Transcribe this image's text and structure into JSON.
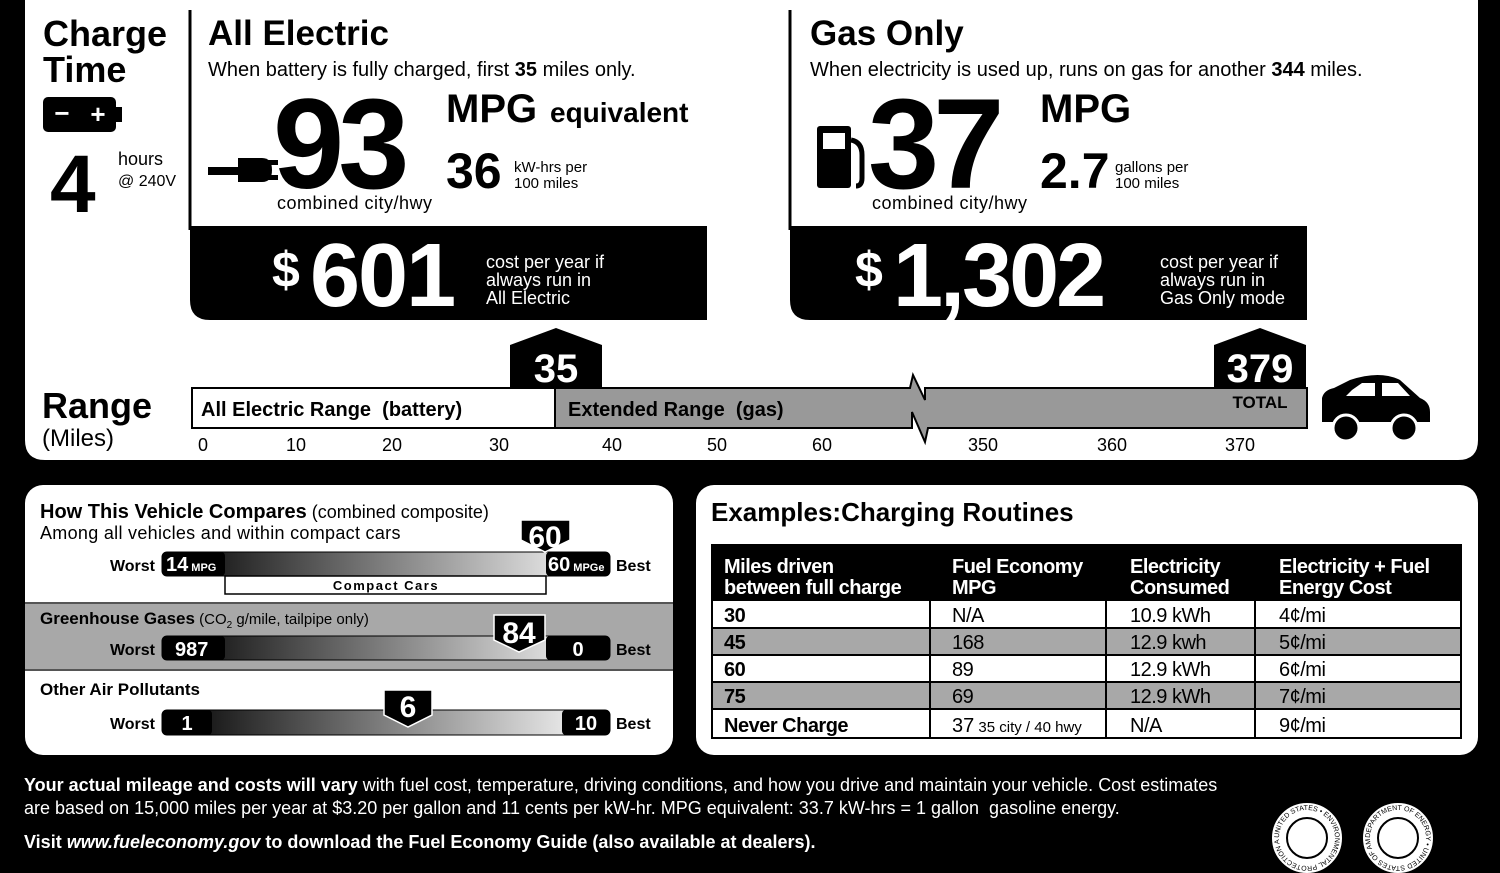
{
  "charge_time": {
    "title_line1": "Charge",
    "title_line2": "Time",
    "battery_minus": "−",
    "battery_plus": "+",
    "hours": "4",
    "hours_unit": "hours",
    "voltage": "@ 240V"
  },
  "all_electric": {
    "title": "All Electric",
    "subtitle_pre": "When battery is fully charged, first ",
    "subtitle_value": "35",
    "subtitle_post": " miles only.",
    "mpge": "93",
    "mpge_unit": "MPG",
    "mpge_suffix": "equivalent",
    "consumption": "36",
    "consumption_unit_line1": "kW-hrs per",
    "consumption_unit_line2": "100 miles",
    "combined": "combined city/hwy",
    "cost_symbol": "$",
    "cost": "601",
    "cost_note": [
      "cost per year if",
      "always run in",
      "All Electric"
    ]
  },
  "gas_only": {
    "title": "Gas Only",
    "subtitle_pre": "When electricity is used up, runs on gas for another ",
    "subtitle_value": "344",
    "subtitle_post": " miles.",
    "mpg": "37",
    "mpg_unit": "MPG",
    "consumption": "2.7",
    "consumption_unit_line1": "gallons per",
    "consumption_unit_line2": "100 miles",
    "combined": "combined city/hwy",
    "cost_symbol": "$",
    "cost": "1,302",
    "cost_note": [
      "cost per year if",
      "always run in",
      "Gas Only mode"
    ]
  },
  "range": {
    "title": "Range",
    "unit": "(Miles)",
    "electric_label": "All Electric Range  (battery)",
    "extended_label": "Extended Range  (gas)",
    "electric_badge": "35",
    "total_badge": "379",
    "total_label": "TOTAL",
    "ticks": [
      "0",
      "10",
      "20",
      "30",
      "40",
      "50",
      "60",
      "350",
      "360",
      "370"
    ]
  },
  "compare": {
    "title": "How This Vehicle Compares",
    "title_note": " (combined composite)",
    "subtitle": "Among all vehicles and within compact cars",
    "fuel": {
      "worst_label": "Worst",
      "worst": "14",
      "worst_unit": " MPG",
      "best": "60",
      "best_unit": " MPGe",
      "best_label": "Best",
      "group": "Compact Cars",
      "marker": "60"
    },
    "greenhouse": {
      "title": "Greenhouse Gases",
      "note_pre": " (CO",
      "note_sub": "2",
      "note_post": " g/mile, tailpipe only)",
      "worst_label": "Worst",
      "worst": "987",
      "best": "0",
      "best_label": "Best",
      "marker": "84"
    },
    "pollutants": {
      "title": "Other Air Pollutants",
      "worst_label": "Worst",
      "worst": "1",
      "best": "10",
      "best_label": "Best",
      "marker": "6"
    }
  },
  "table": {
    "title": "Examples:Charging Routines",
    "headers": [
      [
        "Miles driven",
        "between full charge"
      ],
      [
        "Fuel Economy",
        "MPG"
      ],
      [
        "Electricity",
        "Consumed"
      ],
      [
        "Electricity + Fuel",
        "Energy Cost"
      ]
    ],
    "rows": [
      [
        "30",
        "N/A",
        "10.9 kWh",
        "4¢/mi"
      ],
      [
        "45",
        "168",
        "12.9 kwh",
        "5¢/mi"
      ],
      [
        "60",
        "89",
        "12.9 kWh",
        "6¢/mi"
      ],
      [
        "75",
        "69",
        "12.9 kWh",
        "7¢/mi"
      ],
      [
        "Never Charge",
        "37",
        "N/A",
        "9¢/mi"
      ]
    ],
    "never_charge_note": " 35 city / 40 hwy"
  },
  "footer": {
    "line1_bold": "Your actual mileage and costs will vary",
    "line1_rest": " with fuel cost, temperature, driving conditions, and how you drive and maintain your vehicle. Cost estimates",
    "line2": "are based on 15,000 miles per year at $3.20 per gallon and 11 cents per kW-hr. MPG equivalent: 33.7 kW-hrs = 1 gallon  gasoline energy.",
    "visit_pre": "Visit ",
    "visit_url": "www.fueleconomy.gov",
    "visit_post": " to download the Fuel Economy Guide (also available at dealers).",
    "seals": [
      "UNITED STATES • ENVIRONMENTAL PROTECTION AGENCY •",
      "DEPARTMENT OF ENERGY • UNITED STATES OF AMERICA •"
    ]
  }
}
